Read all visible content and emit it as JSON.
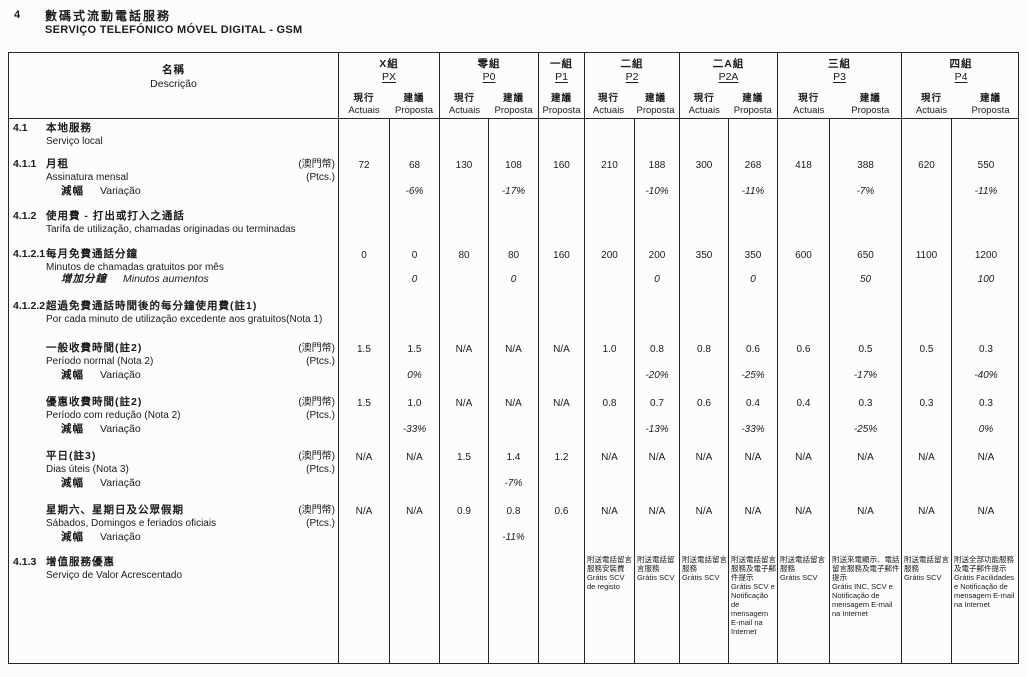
{
  "page": {
    "section_number": "4",
    "title_zh": "數碼式流動電話服務",
    "title_pt": "SERVIÇO TELEFÓNICO MÓVEL DIGITAL - GSM"
  },
  "table": {
    "desc_header": {
      "zh": "名稱",
      "pt": "Descrição"
    },
    "col_labels": {
      "actuais_zh": "現行",
      "actuais_pt": "Actuais",
      "proposta_zh": "建議",
      "proposta_pt": "Proposta"
    },
    "groups": [
      {
        "name_zh": "X組",
        "code": "PX",
        "cols": [
          "actuais",
          "proposta"
        ]
      },
      {
        "name_zh": "零組",
        "code": "P0",
        "cols": [
          "actuais",
          "proposta"
        ]
      },
      {
        "name_zh": "一組",
        "code": "P1",
        "cols": [
          "proposta"
        ]
      },
      {
        "name_zh": "二組",
        "code": "P2",
        "cols": [
          "actuais",
          "proposta"
        ]
      },
      {
        "name_zh": "二A組",
        "code": "P2A",
        "cols": [
          "actuais",
          "proposta"
        ]
      },
      {
        "name_zh": "三組",
        "code": "P3",
        "cols": [
          "actuais",
          "proposta"
        ]
      },
      {
        "name_zh": "四組",
        "code": "P4",
        "cols": [
          "actuais",
          "proposta"
        ]
      }
    ],
    "rows": [
      {
        "num": "4.1",
        "zh": "本地服務",
        "pt": "Serviço local",
        "type": "section"
      },
      {
        "num": "4.1.1",
        "zh": "月租",
        "pt": "Assinatura mensal",
        "unit_zh": "(澳門幣)",
        "unit_pt": "(Ptcs.)",
        "type": "values",
        "cells": [
          "72",
          "68",
          "130",
          "108",
          "160",
          "210",
          "188",
          "300",
          "268",
          "418",
          "388",
          "620",
          "550"
        ]
      },
      {
        "zh": "減幅",
        "pt": "Variação",
        "type": "variation",
        "cells": [
          "",
          "-6%",
          "",
          "-17%",
          "",
          "",
          "-10%",
          "",
          "-11%",
          "",
          "-7%",
          "",
          "-11%"
        ]
      },
      {
        "num": "4.1.2",
        "zh": "使用費 - 打出或打入之通話",
        "pt": "Tarifa de utilização, chamadas originadas ou terminadas",
        "type": "section"
      },
      {
        "num": "4.1.2.1",
        "zh": "每月免費通話分鐘",
        "pt": "Minutos de chamadas gratuitos por mês",
        "type": "values",
        "cells": [
          "0",
          "0",
          "80",
          "80",
          "160",
          "200",
          "200",
          "350",
          "350",
          "600",
          "650",
          "1100",
          "1200"
        ]
      },
      {
        "zh": "增加分鐘",
        "pt": "Minutos aumentos",
        "type": "aumento",
        "cells": [
          "",
          "0",
          "",
          "0",
          "",
          "",
          "0",
          "",
          "0",
          "",
          "50",
          "",
          "100"
        ]
      },
      {
        "num": "4.1.2.2",
        "zh": "超過免費通話時間後的每分鐘使用費(註1)",
        "pt": "Por cada minuto de utilização excedente aos gratuitos(Nota 1)",
        "type": "section"
      },
      {
        "zh": "一般收費時間(註2)",
        "pt": "Período normal (Nota 2)",
        "unit_zh": "(澳門幣)",
        "unit_pt": "(Ptcs.)",
        "type": "values",
        "cells": [
          "1.5",
          "1.5",
          "N/A",
          "N/A",
          "N/A",
          "1.0",
          "0.8",
          "0.8",
          "0.6",
          "0.6",
          "0.5",
          "0.5",
          "0.3"
        ]
      },
      {
        "zh": "減幅",
        "pt": "Variação",
        "type": "variation",
        "cells": [
          "",
          "0%",
          "",
          "",
          "",
          "",
          "-20%",
          "",
          "-25%",
          "",
          "-17%",
          "",
          "-40%"
        ]
      },
      {
        "zh": "優惠收費時間(註2)",
        "pt": "Período com redução (Nota 2)",
        "unit_zh": "(澳門幣)",
        "unit_pt": "(Ptcs.)",
        "type": "values",
        "cells": [
          "1.5",
          "1.0",
          "N/A",
          "N/A",
          "N/A",
          "0.8",
          "0.7",
          "0.6",
          "0.4",
          "0.4",
          "0.3",
          "0.3",
          "0.3"
        ]
      },
      {
        "zh": "減幅",
        "pt": "Variação",
        "type": "variation",
        "cells": [
          "",
          "-33%",
          "",
          "",
          "",
          "",
          "-13%",
          "",
          "-33%",
          "",
          "-25%",
          "",
          "0%"
        ]
      },
      {
        "zh": "平日(註3)",
        "pt": "Dias úteis (Nota 3)",
        "unit_zh": "(澳門幣)",
        "unit_pt": "(Ptcs.)",
        "type": "values",
        "cells": [
          "N/A",
          "N/A",
          "1.5",
          "1.4",
          "1.2",
          "N/A",
          "N/A",
          "N/A",
          "N/A",
          "N/A",
          "N/A",
          "N/A",
          "N/A"
        ]
      },
      {
        "zh": "減幅",
        "pt": "Variação",
        "type": "variation",
        "cells": [
          "",
          "",
          "",
          "-7%",
          "",
          "",
          "",
          "",
          "",
          "",
          "",
          "",
          ""
        ]
      },
      {
        "zh": "星期六、星期日及公眾假期",
        "pt": "Sábados, Domingos e feriados oficiais",
        "unit_zh": "(澳門幣)",
        "unit_pt": "(Ptcs.)",
        "type": "values",
        "cells": [
          "N/A",
          "N/A",
          "0.9",
          "0.8",
          "0.6",
          "N/A",
          "N/A",
          "N/A",
          "N/A",
          "N/A",
          "N/A",
          "N/A",
          "N/A"
        ]
      },
      {
        "zh": "減幅",
        "pt": "Variação",
        "type": "variation",
        "cells": [
          "",
          "",
          "",
          "-11%",
          "",
          "",
          "",
          "",
          "",
          "",
          "",
          "",
          ""
        ]
      },
      {
        "num": "4.1.3",
        "zh": "增值服務優惠",
        "pt": "Serviço de Valor Acrescentado",
        "type": "valueadd",
        "cells": [
          "",
          "",
          "",
          "",
          "",
          "附送電話留言服務安裝費\nGrátis SCV\nde registo",
          "附送電話留言服務\nGrátis SCV",
          "附送電話留言服務\nGrátis SCV",
          "附送電話留言服務及電子郵件提示\nGrátis SCV e Notificação de mensagem E-mail na Internet",
          "附送電話留言服務\nGrátis SCV",
          "附送來電顯示、電話留言服務及電子郵件提示\nGrátis INC, SCV e Notificação de mensagem E-mail na Internet",
          "附送電話留言服務\nGrátis SCV",
          "附送全部功能服務及電子郵件提示\nGrátis Facilidades e Notificação de mensagem E-mail na Internet"
        ]
      }
    ]
  }
}
